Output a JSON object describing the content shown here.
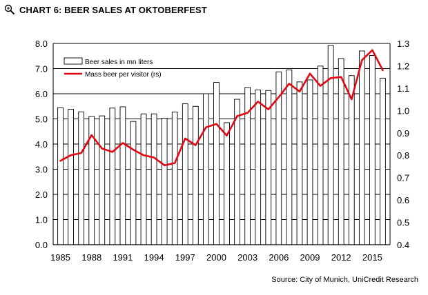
{
  "header": {
    "title": "CHART 6: BEER SALES AT OKTOBERFEST",
    "icon": "zoom-icon"
  },
  "source": "Source: City of Munich, UniCredit Research",
  "chart_data": {
    "type": "bar+line",
    "title": "CHART 6: BEER SALES AT OKTOBERFEST",
    "x": [
      1985,
      1986,
      1987,
      1988,
      1989,
      1990,
      1991,
      1992,
      1993,
      1994,
      1995,
      1996,
      1997,
      1998,
      1999,
      2000,
      2001,
      2002,
      2003,
      2004,
      2005,
      2006,
      2007,
      2008,
      2009,
      2010,
      2011,
      2012,
      2013,
      2014,
      2015,
      2016
    ],
    "x_tick_labels": [
      "1985",
      "1988",
      "1991",
      "1994",
      "1997",
      "2000",
      "2003",
      "2006",
      "2009",
      "2012",
      "2015"
    ],
    "y_left": {
      "ylim": [
        0,
        8
      ],
      "ticks": [
        "0.0",
        "1.0",
        "2.0",
        "3.0",
        "4.0",
        "5.0",
        "6.0",
        "7.0",
        "8.0"
      ]
    },
    "y_right": {
      "ylim": [
        0.4,
        1.3
      ],
      "ticks": [
        "0.4",
        "0.5",
        "0.6",
        "0.7",
        "0.8",
        "0.9",
        "1.0",
        "1.1",
        "1.2",
        "1.3"
      ]
    },
    "grid": "horizontal",
    "legend_position": "top-left",
    "series": [
      {
        "name": "Beer sales in mn liters",
        "type": "bar",
        "axis": "left",
        "color": "#ffffff",
        "values": [
          5.45,
          5.38,
          5.28,
          5.1,
          5.12,
          5.43,
          5.48,
          4.9,
          5.2,
          5.2,
          5.03,
          5.27,
          5.6,
          5.5,
          6.0,
          6.45,
          4.85,
          5.78,
          6.25,
          6.15,
          6.13,
          6.87,
          6.95,
          6.47,
          6.55,
          7.1,
          7.92,
          7.4,
          6.72,
          7.7,
          7.52,
          6.62
        ]
      },
      {
        "name": "Mass beer per visitor (rs)",
        "type": "line",
        "axis": "right",
        "color": "#e30613",
        "values": [
          0.775,
          0.8,
          0.81,
          0.89,
          0.83,
          0.815,
          0.855,
          0.825,
          0.8,
          0.79,
          0.755,
          0.765,
          0.875,
          0.845,
          0.925,
          0.94,
          0.888,
          0.975,
          0.99,
          1.04,
          1.005,
          1.06,
          1.12,
          1.085,
          1.165,
          1.11,
          1.145,
          1.15,
          1.05,
          1.225,
          1.27,
          1.18
        ]
      }
    ]
  },
  "colors": {
    "line": "#e30613",
    "bar_fill": "#ffffff",
    "bar_stroke": "#000000"
  }
}
